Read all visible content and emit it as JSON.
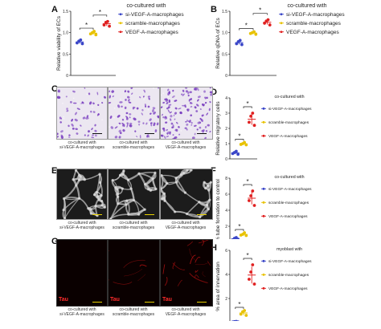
{
  "colors": {
    "si": "#3a46c8",
    "scramble": "#e8c200",
    "vegf": "#e02020",
    "crystal_bg": "#ece7f1",
    "crystal_cell": "#7a3fc0",
    "tube_bg": "#1c1c1c",
    "tube_net": "#bdbdbd",
    "tau_bg": "#0a0000",
    "tau_signal": "#b01010",
    "scale_bar_yellow": "#e8d000",
    "scale_bar_black": "#111111"
  },
  "panels": {
    "A": {
      "letter": "A",
      "legend_title": "co-cultured with",
      "ylabel": "Relative viability of ECs"
    },
    "B": {
      "letter": "B",
      "legend_title": "co-cultured with",
      "ylabel": "Relative qDNA of ECs"
    },
    "C": {
      "letter": "C"
    },
    "D": {
      "letter": "D",
      "legend_title": "co-cultured with",
      "ylabel": "Relative migratory cells"
    },
    "E": {
      "letter": "E"
    },
    "F": {
      "letter": "F",
      "legend_title": "co-cultured with",
      "ylabel": "% tube formation to control"
    },
    "G": {
      "letter": "G"
    },
    "H": {
      "letter": "H",
      "legend_title": "myoblast with",
      "ylabel": "% area of innervation"
    }
  },
  "legend": {
    "si": "si-VEGF-A-macrophages",
    "scramble": "scramble-macrophages",
    "vegf": "VEGF-A-macrophages"
  },
  "image_captions": [
    {
      "line1": "co-cultured with",
      "line2": "si-VEGF-A-macrophages"
    },
    {
      "line1": "co-cultured with",
      "line2": "scramble-macrophages"
    },
    {
      "line1": "co-cultured with",
      "line2": "VEGF-A-macrophages"
    }
  ],
  "tau_label": "Tau",
  "significance": "*",
  "chart_data": [
    {
      "panel": "A",
      "type": "scatter",
      "ylabel": "Relative viability of ECs",
      "ylim": [
        0,
        1.5
      ],
      "yticks": [
        "0",
        "0.5",
        "1.0",
        "1.5"
      ],
      "series": [
        {
          "name": "si-VEGF-A-macrophages",
          "values": [
            0.76,
            0.8,
            0.83,
            0.74
          ]
        },
        {
          "name": "scramble-macrophages",
          "values": [
            0.97,
            1.0,
            1.03,
            0.95
          ]
        },
        {
          "name": "VEGF-A-macrophages",
          "values": [
            1.18,
            1.24,
            1.26,
            1.15
          ]
        }
      ],
      "brackets": [
        {
          "from": 0,
          "to": 1,
          "label": "*"
        },
        {
          "from": 1,
          "to": 2,
          "label": "*"
        }
      ]
    },
    {
      "panel": "B",
      "type": "scatter",
      "ylabel": "Relative qDNA of ECs",
      "ylim": [
        0,
        1.5
      ],
      "yticks": [
        "0",
        "0.5",
        "1.0",
        "1.5"
      ],
      "series": [
        {
          "name": "si-VEGF-A-macrophages",
          "values": [
            0.74,
            0.79,
            0.82,
            0.72
          ]
        },
        {
          "name": "scramble-macrophages",
          "values": [
            0.98,
            1.0,
            1.02,
            0.96
          ]
        },
        {
          "name": "VEGF-A-macrophages",
          "values": [
            1.22,
            1.27,
            1.3,
            1.18
          ]
        }
      ],
      "brackets": [
        {
          "from": 0,
          "to": 1,
          "label": "*"
        },
        {
          "from": 1,
          "to": 2,
          "label": "*"
        }
      ]
    },
    {
      "panel": "D",
      "type": "scatter",
      "ylabel": "Relative migratory cells",
      "ylim": [
        0,
        4
      ],
      "yticks": [
        "0",
        "1",
        "2",
        "3",
        "4"
      ],
      "series": [
        {
          "name": "si-VEGF-A-macrophages",
          "values": [
            0.35,
            0.42,
            0.5,
            0.3
          ]
        },
        {
          "name": "scramble-macrophages",
          "values": [
            0.95,
            1.0,
            1.08,
            0.92
          ]
        },
        {
          "name": "VEGF-A-macrophages",
          "values": [
            2.4,
            2.8,
            3.0,
            2.2
          ]
        }
      ],
      "brackets": [
        {
          "from": 0,
          "to": 1,
          "label": "*"
        },
        {
          "from": 1,
          "to": 2,
          "label": "*"
        }
      ]
    },
    {
      "panel": "F",
      "type": "scatter",
      "ylabel": "% tube formation to control",
      "ylim": [
        0,
        8
      ],
      "yticks": [
        "0",
        "2",
        "4",
        "6",
        "8"
      ],
      "series": [
        {
          "name": "si-VEGF-A-macrophages",
          "values": [
            0.3,
            0.5,
            0.6,
            0.4
          ]
        },
        {
          "name": "scramble-macrophages",
          "values": [
            0.9,
            1.0,
            1.2,
            0.85
          ]
        },
        {
          "name": "VEGF-A-macrophages",
          "values": [
            5.2,
            5.8,
            6.4,
            4.6
          ]
        }
      ],
      "brackets": [
        {
          "from": 0,
          "to": 1,
          "label": "*"
        },
        {
          "from": 1,
          "to": 2,
          "label": "*"
        }
      ]
    },
    {
      "panel": "H",
      "type": "scatter",
      "ylabel": "% area of innervation",
      "ylim": [
        0,
        6
      ],
      "yticks": [
        "0",
        "2",
        "4",
        "6"
      ],
      "series": [
        {
          "name": "si-VEGF-A-macrophages",
          "values": [
            0.05,
            0.08,
            0.1,
            0.06
          ]
        },
        {
          "name": "scramble-macrophages",
          "values": [
            0.7,
            0.9,
            1.0,
            0.6
          ]
        },
        {
          "name": "VEGF-A-macrophages",
          "values": [
            3.6,
            4.2,
            4.8,
            3.2
          ]
        }
      ],
      "brackets": [
        {
          "from": 0,
          "to": 1,
          "label": "*"
        },
        {
          "from": 1,
          "to": 2,
          "label": "*"
        }
      ]
    }
  ]
}
